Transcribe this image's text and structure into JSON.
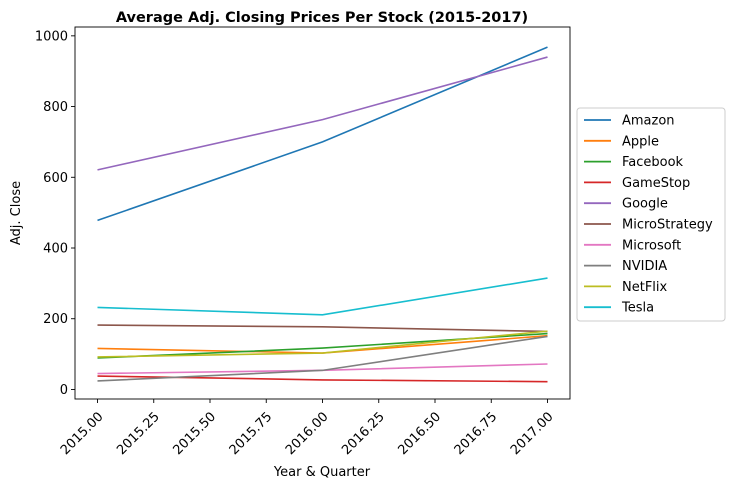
{
  "chart_data": {
    "type": "line",
    "title": "Average Adj. Closing Prices Per Stock (2015-2017)",
    "xlabel": "Year & Quarter",
    "ylabel": "Adj. Close",
    "x": [
      2015,
      2016,
      2017
    ],
    "xlim": [
      2014.9,
      2017.1
    ],
    "ylim": [
      -27,
      1025
    ],
    "xticks": [
      "2015.00",
      "2015.25",
      "2015.50",
      "2015.75",
      "2016.00",
      "2016.25",
      "2016.50",
      "2016.75",
      "2017.00"
    ],
    "yticks": [
      "0",
      "200",
      "400",
      "600",
      "800",
      "1000"
    ],
    "grid": false,
    "legend_position": "center-right outside",
    "series": [
      {
        "name": "Amazon",
        "color": "#1f77b4",
        "values": [
          478,
          700,
          968
        ]
      },
      {
        "name": "Apple",
        "color": "#ff7f0e",
        "values": [
          116,
          103,
          152
        ]
      },
      {
        "name": "Facebook",
        "color": "#2ca02c",
        "values": [
          89,
          117,
          158
        ]
      },
      {
        "name": "GameStop",
        "color": "#d62728",
        "values": [
          38,
          27,
          22
        ]
      },
      {
        "name": "Google",
        "color": "#9467bd",
        "values": [
          621,
          763,
          940
        ]
      },
      {
        "name": "MicroStrategy",
        "color": "#8c564b",
        "values": [
          182,
          177,
          164
        ]
      },
      {
        "name": "Microsoft",
        "color": "#e377c2",
        "values": [
          45,
          54,
          72
        ]
      },
      {
        "name": "NVIDIA",
        "color": "#7f7f7f",
        "values": [
          24,
          54,
          150
        ]
      },
      {
        "name": "NetFlix",
        "color": "#bcbd22",
        "values": [
          92,
          103,
          165
        ]
      },
      {
        "name": "Tesla",
        "color": "#17becf",
        "values": [
          232,
          211,
          315
        ]
      }
    ]
  }
}
